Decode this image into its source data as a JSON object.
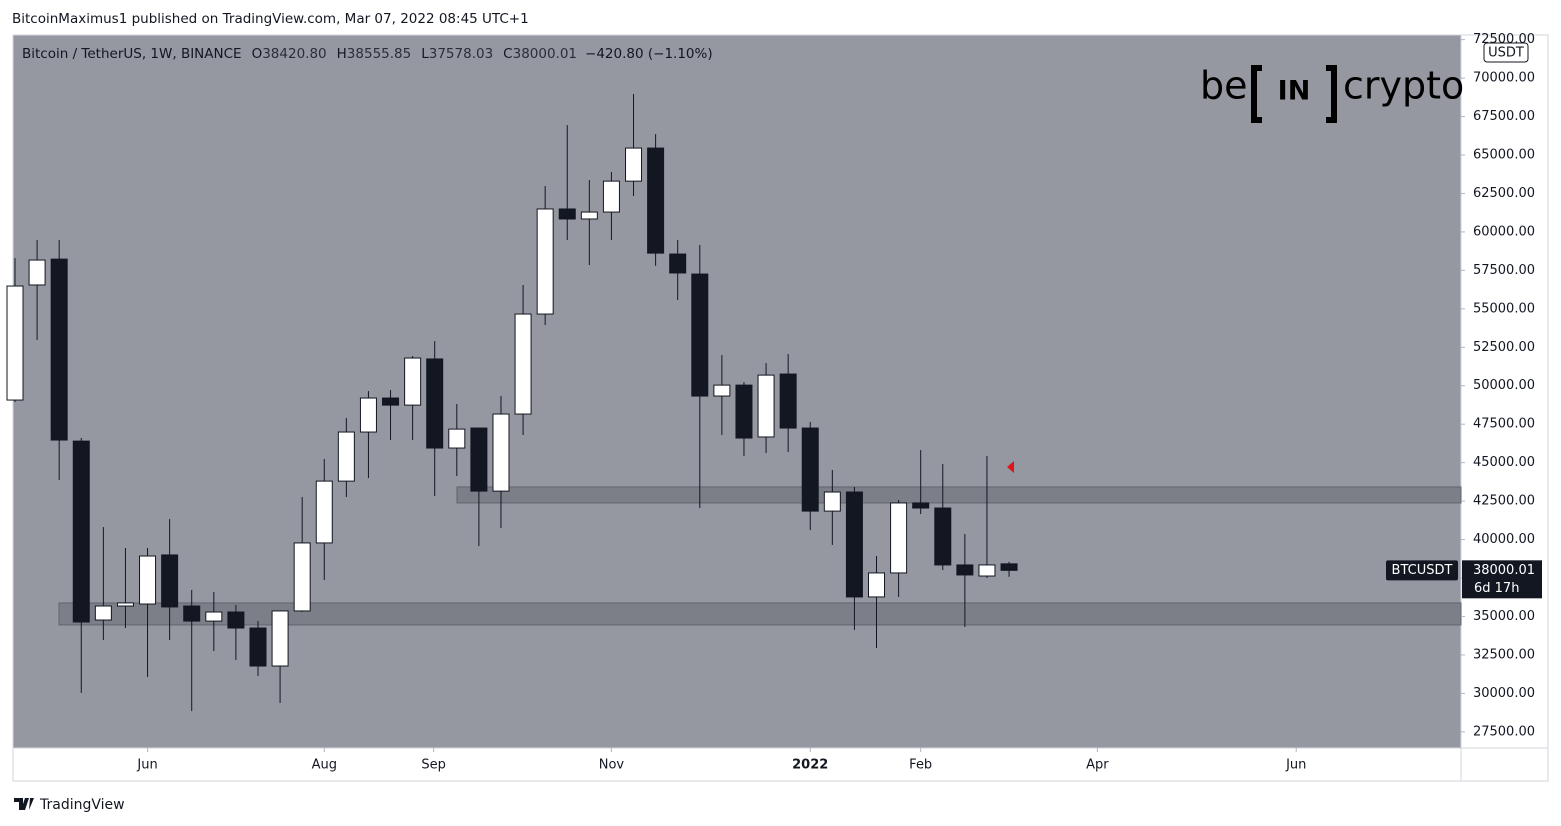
{
  "header": {
    "publisher": "BitcoinMaximus1 published on TradingView.com, Mar 07, 2022 08:45 UTC+1",
    "footer": "TradingView",
    "logo": [
      "be",
      "IN",
      "crypto"
    ]
  },
  "chart_data": {
    "type": "candlestick",
    "title": "Bitcoin / TetherUS, 1W, BINANCE",
    "ohlc_labels": [
      {
        "key": "O",
        "value": "38420.80"
      },
      {
        "key": "H",
        "value": "38555.85"
      },
      {
        "key": "L",
        "value": "37578.03"
      },
      {
        "key": "C",
        "value": "38000.01"
      }
    ],
    "change": "−420.80 (−1.10%)",
    "unit": "USDT",
    "categories": [
      null,
      null,
      null,
      null,
      null,
      null,
      null,
      null,
      null,
      null,
      null,
      null,
      null,
      null,
      null,
      null,
      null,
      null,
      null,
      null,
      null,
      null,
      null,
      null,
      null,
      null,
      null,
      null,
      null,
      null,
      null,
      null,
      null,
      null,
      null,
      null,
      null,
      null,
      null,
      null,
      null,
      null,
      null,
      null,
      null,
      null
    ],
    "open": [
      49070,
      56550,
      58230,
      46400,
      34770,
      35680,
      35810,
      39000,
      35680,
      34700,
      35290,
      34250,
      31780,
      35360,
      39780,
      43800,
      46990,
      49200,
      48740,
      51740,
      45950,
      47250,
      43150,
      48160,
      54660,
      61490,
      60840,
      61290,
      63300,
      65450,
      58560,
      57260,
      49330,
      50040,
      46670,
      50760,
      47250,
      41850,
      43090,
      36270,
      37830,
      42380,
      42050,
      38350,
      37630,
      38420.8
    ],
    "high": [
      58300,
      59470,
      59470,
      46600,
      40810,
      39450,
      39450,
      41330,
      36720,
      36590,
      35750,
      34700,
      35360,
      42770,
      45240,
      47900,
      49650,
      49720,
      51930,
      52900,
      48810,
      47250,
      49330,
      56550,
      62980,
      66940,
      63370,
      63890,
      68960,
      66360,
      59470,
      59150,
      51990,
      50240,
      51470,
      52060,
      47640,
      44520,
      43420,
      38930,
      42570,
      45820,
      44910,
      40360,
      45430,
      38555.85
    ],
    "low": [
      48940,
      52970,
      43870,
      30030,
      33470,
      34250,
      31070,
      33470,
      28850,
      32750,
      32170,
      31130,
      29380,
      35290,
      37370,
      42770,
      44000,
      46470,
      46470,
      42830,
      44130,
      39580,
      40750,
      46800,
      53950,
      59470,
      57850,
      59470,
      62330,
      57800,
      55570,
      42050,
      46800,
      45430,
      45630,
      45690,
      40620,
      39650,
      34120,
      32950,
      36270,
      41660,
      38020,
      34320,
      37500,
      37578.03
    ],
    "close": [
      56480,
      58170,
      46470,
      34640,
      35680,
      35880,
      38930,
      35620,
      34700,
      35290,
      34250,
      31780,
      35360,
      39780,
      43800,
      46990,
      49200,
      48740,
      51800,
      45950,
      47180,
      43150,
      48160,
      54660,
      61490,
      60840,
      61290,
      63300,
      65450,
      58620,
      57330,
      49330,
      50040,
      46600,
      50690,
      47250,
      41850,
      43090,
      36270,
      37830,
      42380,
      42050,
      38350,
      37700,
      38350,
      38000.01
    ],
    "up_color": "#ffffff",
    "down_color": "#131722",
    "background": "#9598a1",
    "xticks": [
      {
        "value": 6,
        "label": "Jun"
      },
      {
        "value": 14,
        "label": "Aug"
      },
      {
        "value": 18.95,
        "label": "Sep"
      },
      {
        "value": 27,
        "label": "Nov"
      },
      {
        "value": 36,
        "label": "2022"
      },
      {
        "value": 41,
        "label": "Feb"
      },
      {
        "value": 49,
        "label": "Apr"
      },
      {
        "value": 58,
        "label": "Jun"
      }
    ],
    "ylim": [
      26450,
      72800
    ],
    "yticks": [
      {
        "value": 27500,
        "label": "27500.00"
      },
      {
        "value": 30000,
        "label": "30000.00"
      },
      {
        "value": 32500,
        "label": "32500.00"
      },
      {
        "value": 35000,
        "label": "35000.00"
      },
      {
        "value": 37500,
        "label": "37500.00"
      },
      {
        "value": 40000,
        "label": "40000.00"
      },
      {
        "value": 42500,
        "label": "42500.00"
      },
      {
        "value": 45000,
        "label": "45000.00"
      },
      {
        "value": 47500,
        "label": "47500.00"
      },
      {
        "value": 50000,
        "label": "50000.00"
      },
      {
        "value": 52500,
        "label": "52500.00"
      },
      {
        "value": 55000,
        "label": "55000.00"
      },
      {
        "value": 57500,
        "label": "57500.00"
      },
      {
        "value": 60000,
        "label": "60000.00"
      },
      {
        "value": 62500,
        "label": "62500.00"
      },
      {
        "value": 65000,
        "label": "65000.00"
      },
      {
        "value": 67500,
        "label": "67500.00"
      },
      {
        "value": 70000,
        "label": "70000.00"
      },
      {
        "value": 72500,
        "label": "72500.00"
      }
    ],
    "zones": [
      {
        "low": 42380,
        "high": 43420
      },
      {
        "low": 34450,
        "high": 35880
      }
    ],
    "last_price": {
      "symbol": "BTCUSDT",
      "value": 38000.01,
      "countdown": "6d 17h"
    }
  }
}
